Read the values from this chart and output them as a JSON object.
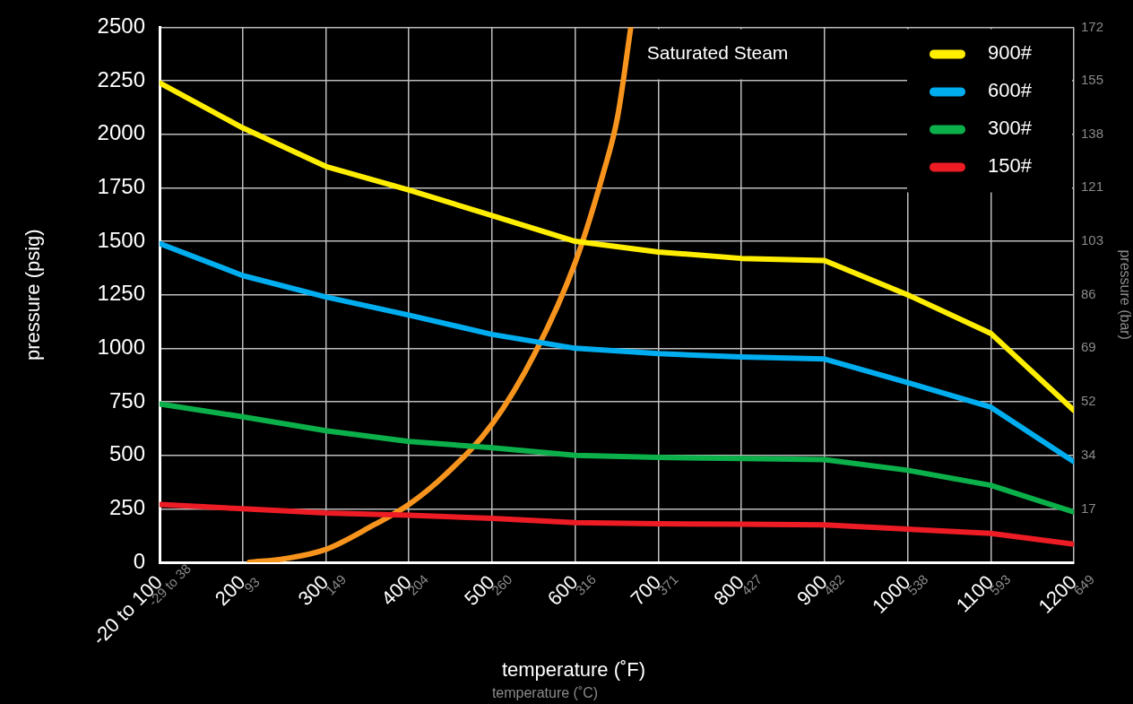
{
  "chart_data": {
    "type": "line",
    "xlabel": "temperature (˚F)",
    "x2label": "temperature (˚C)",
    "ylabel": "pressure (psig)",
    "y2label": "pressure (bar)",
    "x": [
      100,
      200,
      300,
      400,
      500,
      600,
      700,
      800,
      900,
      1000,
      1100,
      1200
    ],
    "xlim": [
      100,
      1200
    ],
    "xticks": [
      {
        "value": 100,
        "label": "-20 to 100"
      },
      200,
      300,
      400,
      500,
      600,
      700,
      800,
      900,
      1000,
      1100,
      1200
    ],
    "x2lim": [
      38,
      649
    ],
    "x2ticks": [
      {
        "value": 38,
        "label": "-29 to 38"
      },
      93,
      149,
      204,
      260,
      316,
      371,
      427,
      482,
      538,
      593,
      649
    ],
    "ylim": [
      0,
      2500
    ],
    "yticks": [
      0,
      250,
      500,
      750,
      1000,
      1250,
      1500,
      1750,
      2000,
      2250,
      2500
    ],
    "y2lim": [
      0,
      172.4
    ],
    "y2ticks": [
      {
        "value": 17.2,
        "label": "17"
      },
      {
        "value": 34.5,
        "label": "34"
      },
      {
        "value": 51.7,
        "label": "52"
      },
      {
        "value": 69,
        "label": "69"
      },
      {
        "value": 86.2,
        "label": "86"
      },
      {
        "value": 103.4,
        "label": "103"
      },
      {
        "value": 120.7,
        "label": "121"
      },
      {
        "value": 137.9,
        "label": "138"
      },
      {
        "value": 155.1,
        "label": "155"
      },
      {
        "value": 172.4,
        "label": "172"
      }
    ],
    "series": [
      {
        "name": "900#",
        "color": "#ffee00",
        "values": [
          2240,
          2030,
          1850,
          1740,
          1620,
          1500,
          1450,
          1420,
          1410,
          1250,
          1070,
          710
        ]
      },
      {
        "name": "600#",
        "color": "#00adef",
        "values": [
          1490,
          1340,
          1240,
          1155,
          1065,
          1000,
          975,
          960,
          950,
          840,
          725,
          470
        ]
      },
      {
        "name": "300#",
        "color": "#0cb04a",
        "values": [
          740,
          680,
          615,
          565,
          535,
          500,
          490,
          485,
          480,
          430,
          360,
          235
        ]
      },
      {
        "name": "150#",
        "color": "#ed1c24",
        "values": [
          270,
          250,
          230,
          220,
          205,
          185,
          180,
          178,
          175,
          155,
          135,
          85
        ]
      },
      {
        "name": "Saturated Steam",
        "color": "#f7941d",
        "x": [
          208,
          251,
          300,
          358,
          400,
          444,
          500,
          552,
          600,
          634,
          651,
          667
        ],
        "values": [
          0,
          17,
          60,
          175,
          270,
          410,
          645,
          980,
          1400,
          1820,
          2080,
          2500
        ]
      }
    ],
    "grid": true,
    "legend": "top right",
    "marker": "none",
    "line_style": "solid"
  }
}
